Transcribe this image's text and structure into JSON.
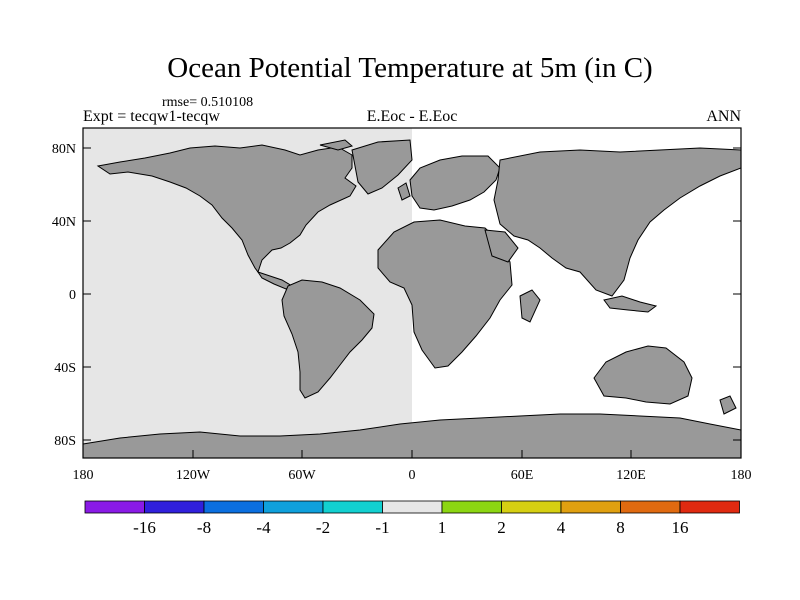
{
  "header": {
    "title": "Ocean Potential Temperature at 5m (in C)",
    "rmse": "rmse= 0.510108",
    "left": "Expt = tecqw1-tecqw",
    "center": "E.Eoc - E.Eoc",
    "right": "ANN"
  },
  "map": {
    "lon_ticks": [
      "180",
      "120W",
      "60W",
      "0",
      "60E",
      "120E",
      "180"
    ],
    "lat_ticks": [
      "80N",
      "40N",
      "0",
      "40S",
      "80S"
    ],
    "lon_range": [
      -180,
      180
    ],
    "lat_range": [
      -90,
      90
    ],
    "colors": {
      "land": "#999999",
      "ocean_west": "#e6e6e6",
      "ocean_east": "#ffffff"
    }
  },
  "colorbar": {
    "labels": [
      "-16",
      "-8",
      "-4",
      "-2",
      "-1",
      "1",
      "2",
      "4",
      "8",
      "16"
    ],
    "colors": [
      "#8a1ae6",
      "#3020dc",
      "#0b6fe0",
      "#0fa0dc",
      "#12d0d0",
      "#e6e6e6",
      "#8cd612",
      "#d6cf12",
      "#e0a010",
      "#e06a10",
      "#e02a10"
    ]
  }
}
